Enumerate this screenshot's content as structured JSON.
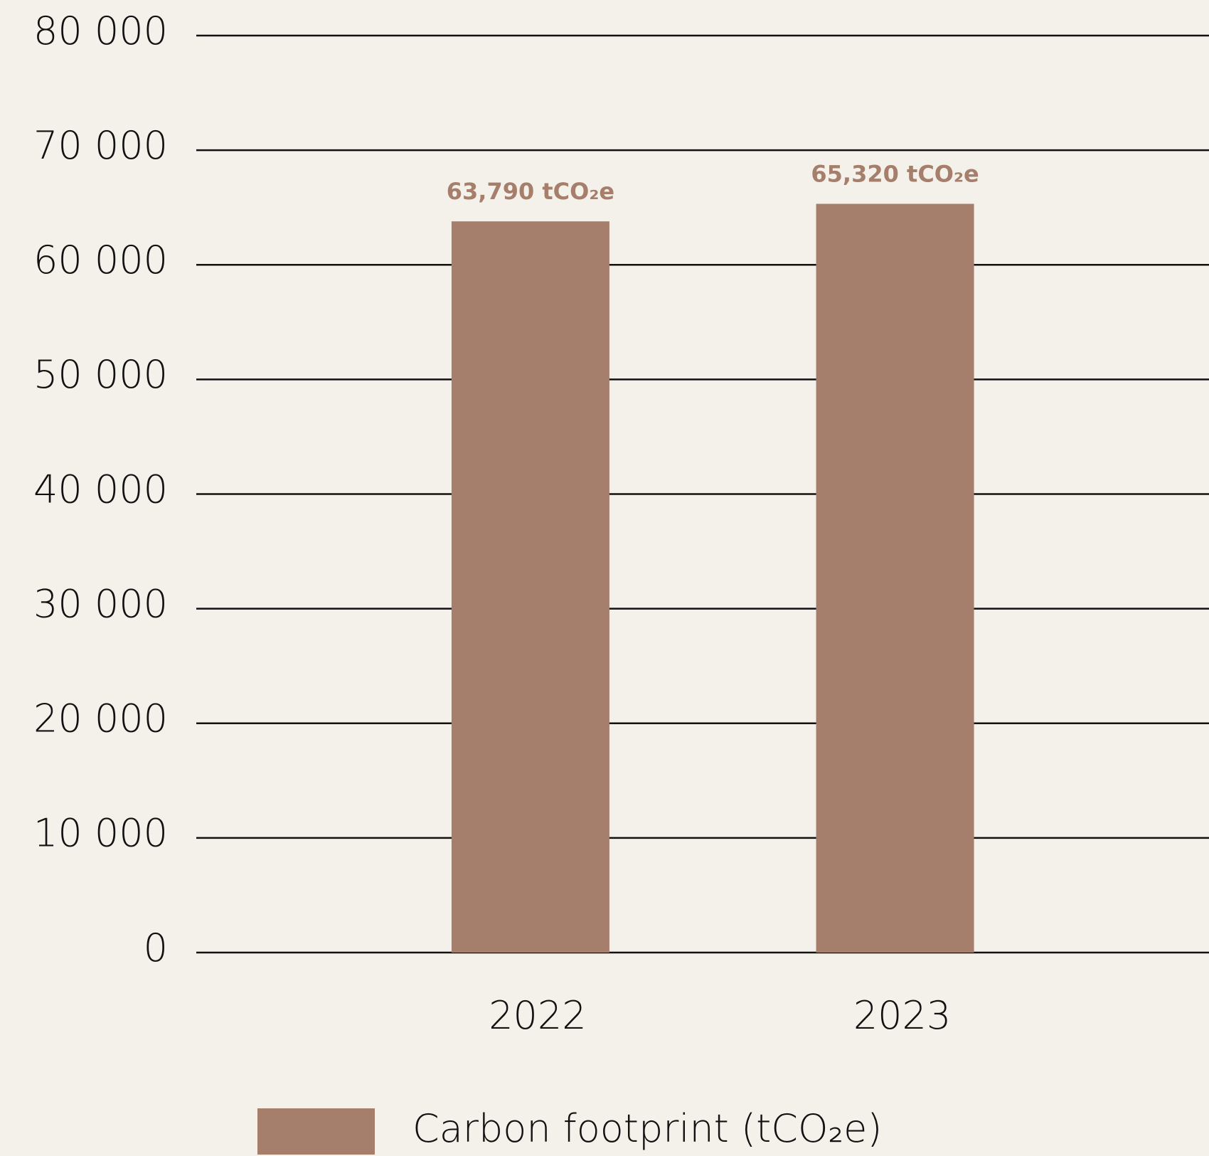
{
  "chart_data": {
    "type": "bar",
    "categories": [
      "2022",
      "2023"
    ],
    "series": [
      {
        "name": "Carbon footprint (tCO₂e)",
        "color": "#a57f6c",
        "values": [
          63790,
          65320
        ]
      }
    ],
    "value_labels": [
      "63,790 tCO₂e",
      "65,320 tCO₂e"
    ],
    "ylim": [
      0,
      80000
    ],
    "yticks": [
      0,
      {
        "value": 10000,
        "label": "10 000"
      },
      {
        "value": 20000,
        "label": "20 000"
      },
      {
        "value": 30000,
        "label": "30 000"
      },
      {
        "value": 40000,
        "label": "40 000"
      },
      {
        "value": 50000,
        "label": "50 000"
      },
      {
        "value": 60000,
        "label": "60 000"
      },
      {
        "value": 70000,
        "label": "70 000"
      },
      {
        "value": 80000,
        "label": "80 000"
      }
    ],
    "grid": true
  }
}
